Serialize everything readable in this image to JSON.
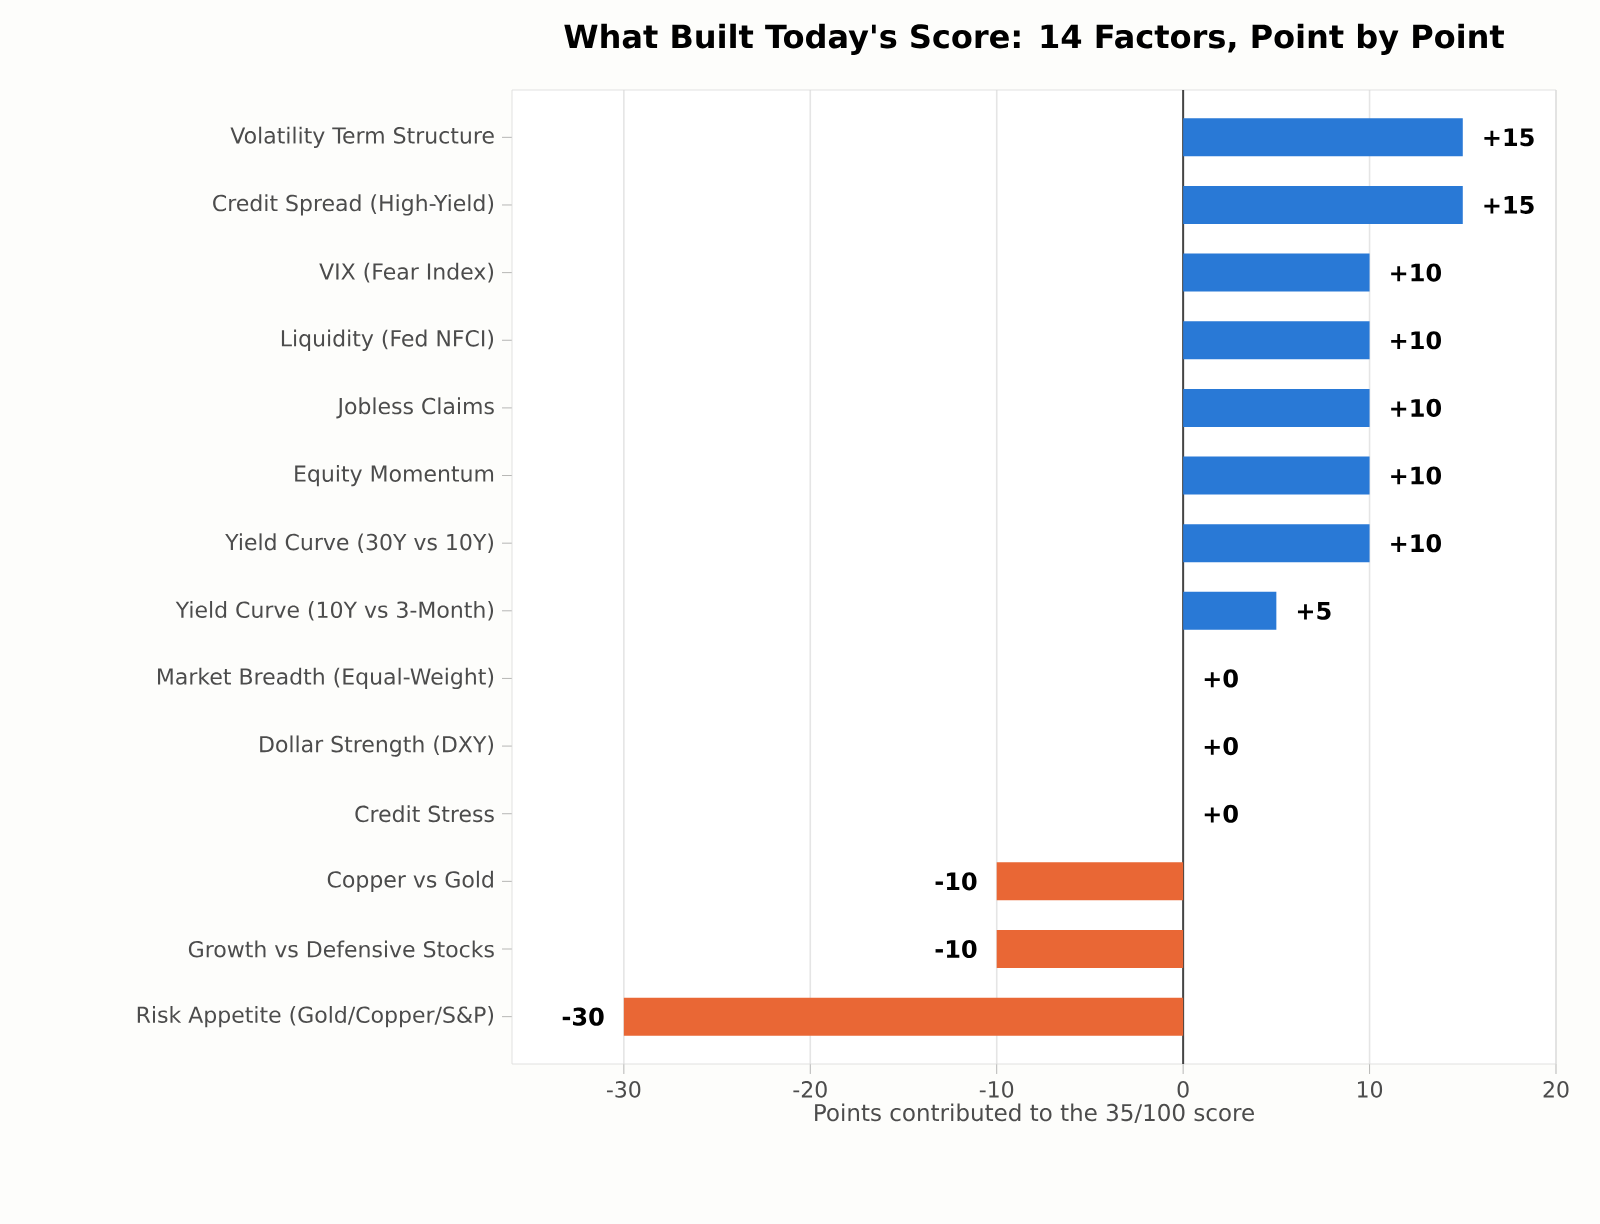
{
  "chart_data": {
    "type": "bar",
    "orientation": "horizontal",
    "title": "What Built Today's Score: 14 Factors, Point by Point",
    "xlabel": "Points contributed to the 35/100 score",
    "categories": [
      "Volatility Term Structure",
      "Credit Spread (High-Yield)",
      "VIX (Fear Index)",
      "Liquidity (Fed NFCI)",
      "Jobless Claims",
      "Equity Momentum",
      "Yield Curve (30Y vs 10Y)",
      "Yield Curve (10Y vs 3-Month)",
      "Market Breadth (Equal-Weight)",
      "Dollar Strength (DXY)",
      "Credit Stress",
      "Copper vs Gold",
      "Growth vs Defensive Stocks",
      "Risk Appetite (Gold/Copper/S&P)"
    ],
    "values": [
      15,
      15,
      10,
      10,
      10,
      10,
      10,
      5,
      0,
      0,
      0,
      -10,
      -10,
      -30
    ],
    "value_labels": [
      "+15",
      "+15",
      "+10",
      "+10",
      "+10",
      "+10",
      "+10",
      "+5",
      "+0",
      "+0",
      "+0",
      "-10",
      "-10",
      "-30"
    ],
    "colors": [
      "#2979d6",
      "#2979d6",
      "#2979d6",
      "#2979d6",
      "#2979d6",
      "#2979d6",
      "#2979d6",
      "#2979d6",
      "#2979d6",
      "#2979d6",
      "#2979d6",
      "#e96735",
      "#e96735",
      "#e96735"
    ],
    "xlim": [
      -36,
      20
    ],
    "xticks": [
      -30,
      -20,
      -10,
      0,
      10,
      20
    ],
    "grid": "x",
    "ref_lines": [
      {
        "axis": "x",
        "value": 0,
        "color": "#444444"
      }
    ]
  }
}
